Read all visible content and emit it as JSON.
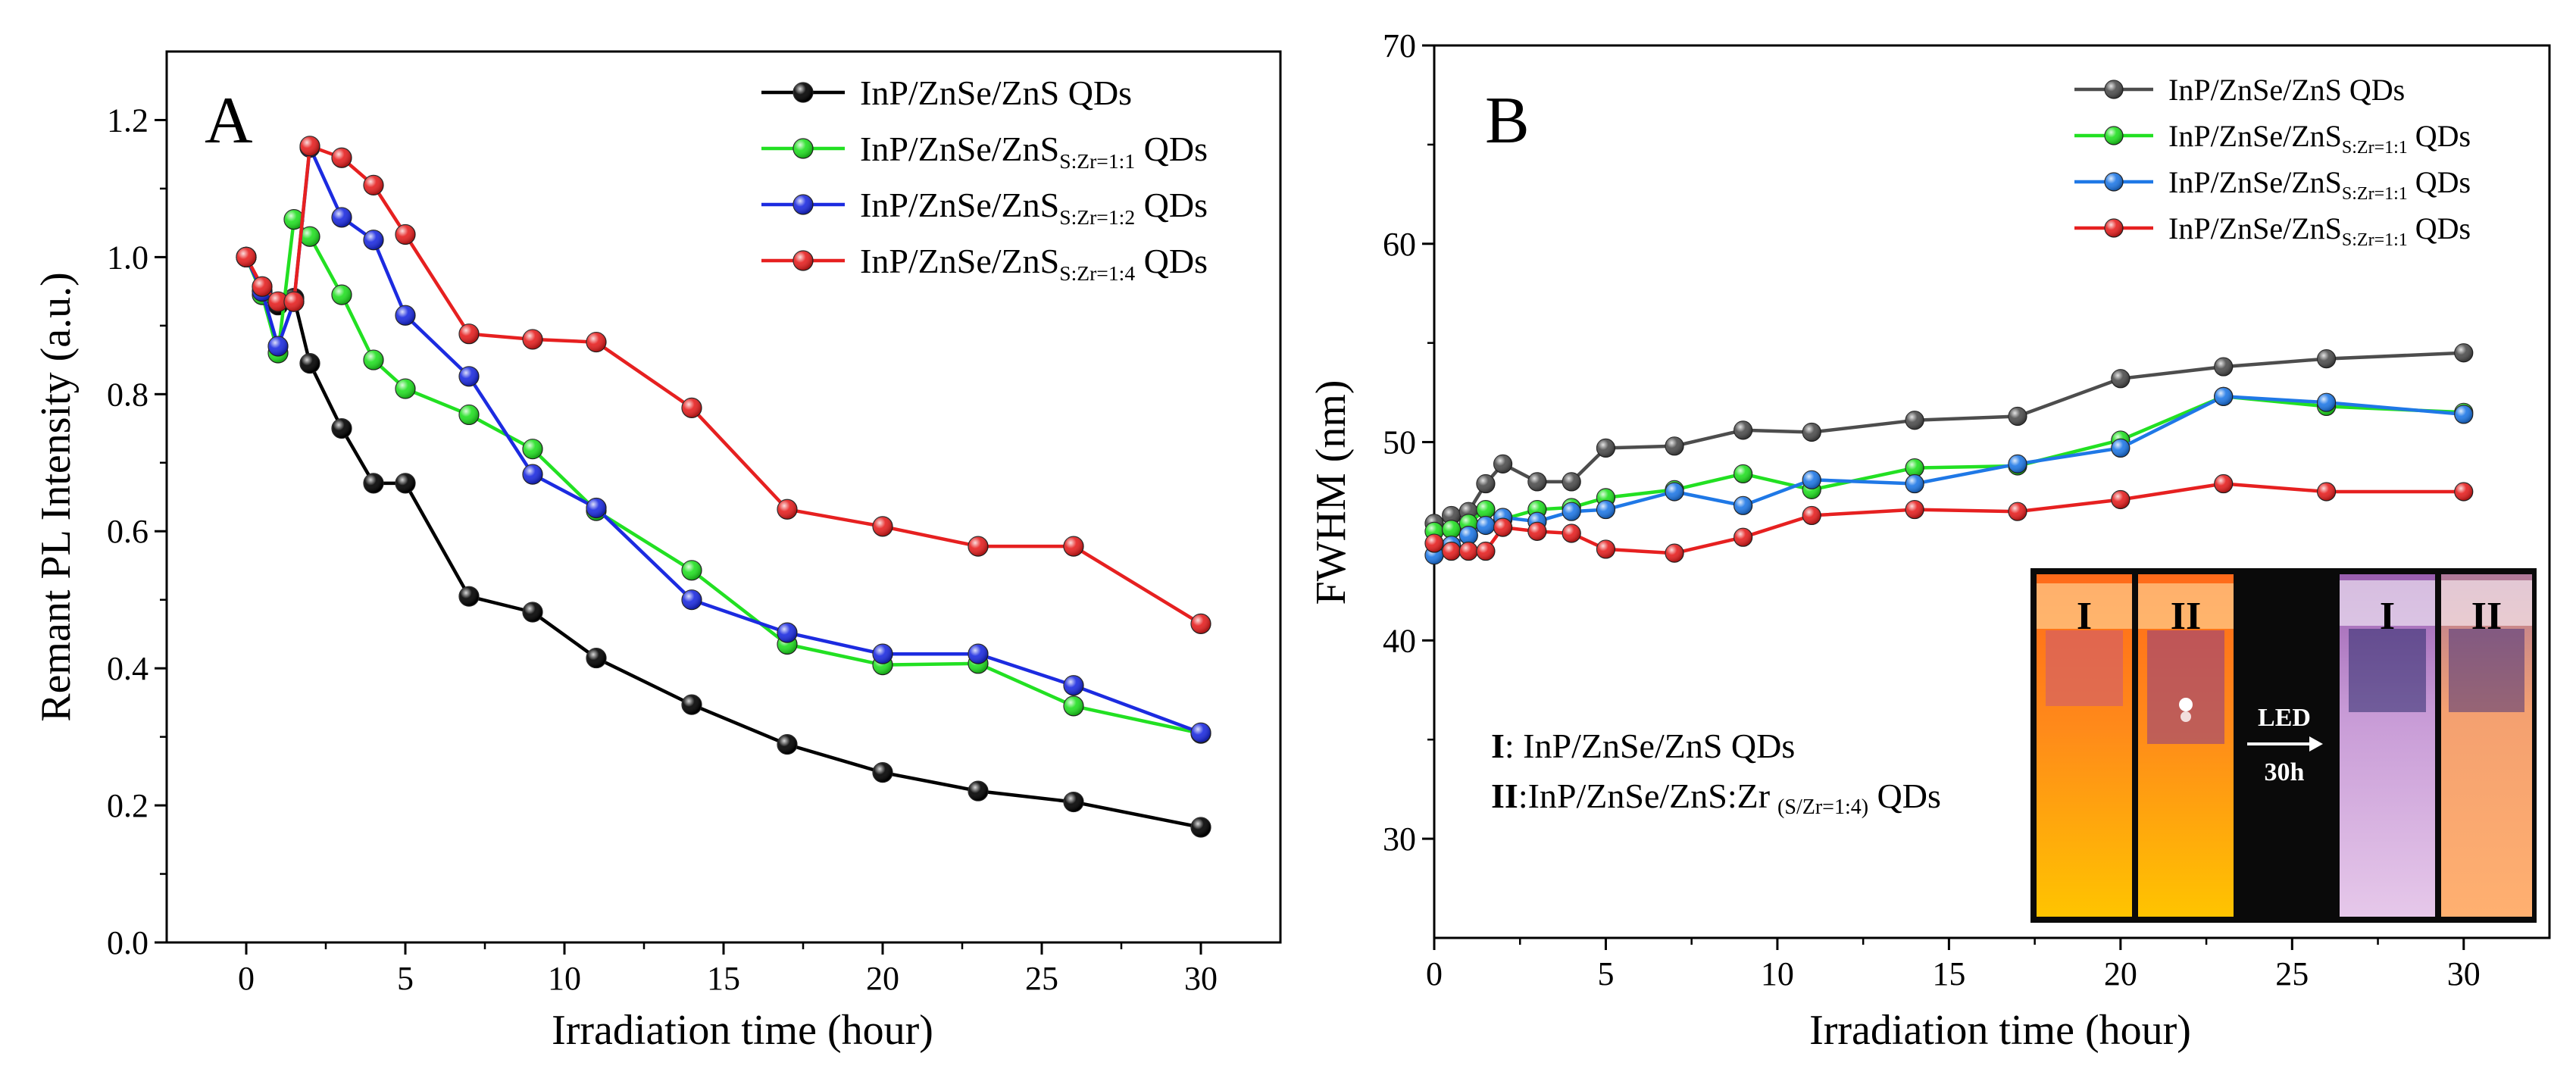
{
  "colors": {
    "black": "#000000",
    "gray": "#4d4d4d",
    "green": "#22e022",
    "blue": "#1c2be0",
    "blue_b": "#1f78e6",
    "red": "#e62020"
  },
  "chart_data": [
    {
      "type": "line",
      "panel_label": "A",
      "xlabel": "Irradiation time (hour)",
      "ylabel": "Remant PL Intensity (a.u.)",
      "xlim": [
        -2.5,
        32.5
      ],
      "ylim": [
        0.0,
        1.3
      ],
      "xticks": [
        "0",
        "5",
        "10",
        "15",
        "20",
        "25",
        "30"
      ],
      "yticks": [
        "0.0",
        "0.2",
        "0.4",
        "0.6",
        "0.8",
        "1.0",
        "1.2"
      ],
      "legend_position": "top-right",
      "series": [
        {
          "name": "InP/ZnSe/ZnS QDs",
          "base": "InP/ZnSe/ZnS QDs",
          "sub": "",
          "suffix": "",
          "color_key": "black",
          "x": [
            0,
            0.5,
            1,
            1.5,
            2,
            3,
            4,
            5,
            7,
            9,
            11,
            14,
            17,
            20,
            23,
            26,
            30
          ],
          "values": [
            1.0,
            0.95,
            0.93,
            0.94,
            0.845,
            0.75,
            0.67,
            0.67,
            0.505,
            0.482,
            0.415,
            0.347,
            0.289,
            0.248,
            0.221,
            0.205,
            0.168
          ]
        },
        {
          "name": "InP/ZnSe/ZnS S:Zr=1:1 QDs",
          "base": "InP/ZnSe/ZnS",
          "sub": "S:Zr=1:1",
          "suffix": " QDs",
          "color_key": "green",
          "x": [
            0,
            0.5,
            1,
            1.5,
            2,
            3,
            4,
            5,
            7,
            9,
            11,
            14,
            17,
            20,
            23,
            26,
            30
          ],
          "values": [
            1.0,
            0.945,
            0.86,
            1.055,
            1.03,
            0.945,
            0.85,
            0.808,
            0.77,
            0.72,
            0.63,
            0.543,
            0.435,
            0.405,
            0.407,
            0.345,
            0.305
          ]
        },
        {
          "name": "InP/ZnSe/ZnS S:Zr=1:2 QDs",
          "base": "InP/ZnSe/ZnS",
          "sub": "S:Zr=1:2",
          "suffix": " QDs",
          "color_key": "blue",
          "x": [
            0,
            0.5,
            1,
            1.5,
            2,
            3,
            4,
            5,
            7,
            9,
            11,
            14,
            17,
            20,
            23,
            26,
            30
          ],
          "values": [
            1.0,
            0.95,
            0.87,
            0.935,
            1.16,
            1.058,
            1.025,
            0.915,
            0.826,
            0.683,
            0.634,
            0.5,
            0.452,
            0.421,
            0.421,
            0.375,
            0.306
          ]
        },
        {
          "name": "InP/ZnSe/ZnS S:Zr=1:4 QDs",
          "base": "InP/ZnSe/ZnS",
          "sub": "S:Zr=1:4",
          "suffix": " QDs",
          "color_key": "red",
          "x": [
            0,
            0.5,
            1,
            1.5,
            2,
            3,
            4,
            5,
            7,
            9,
            11,
            14,
            17,
            20,
            23,
            26,
            30
          ],
          "values": [
            1.0,
            0.957,
            0.935,
            0.935,
            1.162,
            1.145,
            1.105,
            1.033,
            0.888,
            0.88,
            0.876,
            0.78,
            0.632,
            0.607,
            0.578,
            0.578,
            0.465
          ]
        }
      ]
    },
    {
      "type": "line",
      "panel_label": "B",
      "xlabel": "Irradiation time (hour)",
      "ylabel": "FWHM (nm)",
      "xlim": [
        0,
        32.5
      ],
      "ylim": [
        25,
        70
      ],
      "xticks": [
        "0",
        "5",
        "10",
        "15",
        "20",
        "25",
        "30"
      ],
      "yticks": [
        "30",
        "40",
        "50",
        "60",
        "70"
      ],
      "legend_position": "top-right",
      "series": [
        {
          "name": "InP/ZnSe/ZnS QDs",
          "base": "InP/ZnSe/ZnS QDs",
          "sub": "",
          "suffix": "",
          "color_key": "gray",
          "x": [
            0,
            0.5,
            1,
            1.5,
            2,
            3,
            4,
            5,
            7,
            9,
            11,
            14,
            17,
            20,
            23,
            26,
            30
          ],
          "values": [
            45.9,
            46.3,
            46.5,
            47.9,
            48.9,
            48.0,
            48.0,
            49.7,
            49.8,
            50.6,
            50.5,
            51.1,
            51.3,
            53.2,
            53.8,
            54.2,
            54.5
          ]
        },
        {
          "name": "InP/ZnSe/ZnS S:Zr=1:1 QDs",
          "base": "InP/ZnSe/ZnS",
          "sub": "S:Zr=1:1",
          "suffix": " QDs",
          "color_key": "green",
          "x": [
            0,
            0.5,
            1,
            1.5,
            2,
            3,
            4,
            5,
            7,
            9,
            11,
            14,
            17,
            20,
            23,
            26,
            30
          ],
          "values": [
            45.5,
            45.6,
            45.9,
            46.6,
            46.1,
            46.6,
            46.7,
            47.2,
            47.6,
            48.4,
            47.6,
            48.7,
            48.8,
            50.1,
            52.3,
            51.8,
            51.5
          ]
        },
        {
          "name": "InP/ZnSe/ZnS S:Zr=1:1 QDs (blue)",
          "base": "InP/ZnSe/ZnS",
          "sub": "S:Zr=1:1",
          "suffix": "  QDs",
          "color_key": "blue_b",
          "x": [
            0,
            0.5,
            1,
            1.5,
            2,
            3,
            4,
            5,
            7,
            9,
            11,
            14,
            17,
            20,
            23,
            26,
            30
          ],
          "values": [
            44.3,
            44.8,
            45.3,
            45.8,
            46.2,
            46.0,
            46.5,
            46.6,
            47.5,
            46.8,
            48.1,
            47.9,
            48.9,
            49.7,
            52.3,
            52.0,
            51.4
          ]
        },
        {
          "name": "InP/ZnSe/ZnS S:Zr=1:1 QDs (red)",
          "base": "InP/ZnSe/ZnS",
          "sub": "S:Zr=1:1",
          "suffix": "  QDs",
          "color_key": "red",
          "x": [
            0,
            0.5,
            1,
            1.5,
            2,
            3,
            4,
            5,
            7,
            9,
            11,
            14,
            17,
            20,
            23,
            26,
            30
          ],
          "values": [
            44.9,
            44.5,
            44.5,
            44.5,
            45.7,
            45.5,
            45.4,
            44.6,
            44.4,
            45.2,
            46.3,
            46.6,
            46.5,
            47.1,
            47.9,
            47.5,
            47.5
          ]
        }
      ]
    }
  ],
  "inset": {
    "note_line1_bold": "I",
    "note_line1_text": ": InP/ZnSe/ZnS QDs",
    "note_line2_bold": "II",
    "note_line2_text": ":InP/ZnSe/ZnS:Zr",
    "note_line2_sub": "(S/Zr=1:4)",
    "note_line2_suffix": " QDs",
    "vial_label_i": "I",
    "vial_label_ii": "II",
    "arrow_label_top": "LED",
    "arrow_label_bottom": "30h"
  }
}
